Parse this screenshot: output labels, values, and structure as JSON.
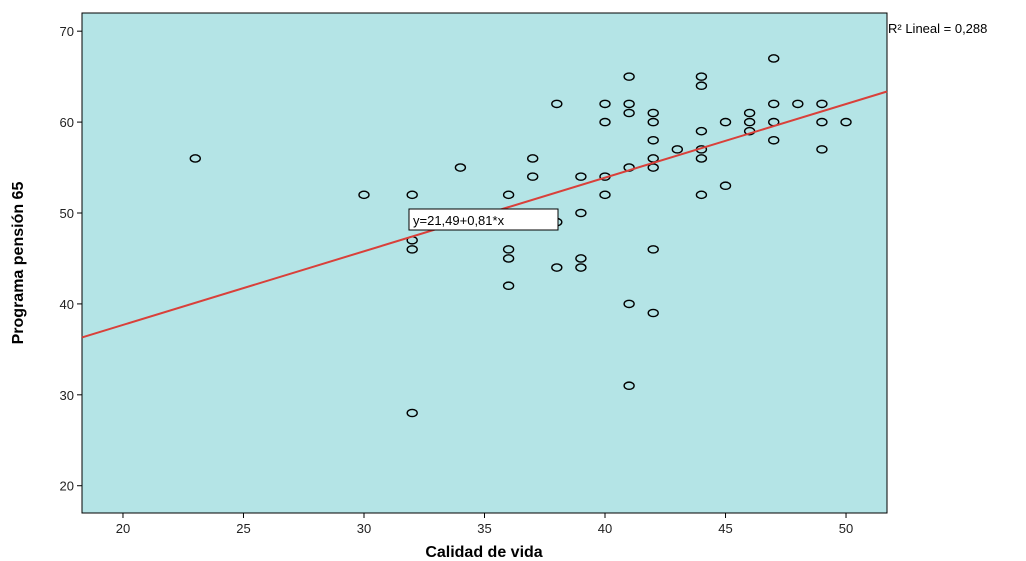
{
  "chart_data": {
    "type": "scatter",
    "title": "",
    "xlabel": "Calidad de vida",
    "ylabel": "Programa pensión 65",
    "xlim": [
      18.3,
      51.7
    ],
    "ylim": [
      17,
      72
    ],
    "xticks": [
      20,
      25,
      30,
      35,
      40,
      45,
      50
    ],
    "yticks": [
      20,
      30,
      40,
      50,
      60,
      70
    ],
    "grid": false,
    "background_color": "#b4e4e6",
    "point_color": "#000000",
    "fit_line_color": "#d9403a",
    "fit": {
      "intercept": 21.49,
      "slope": 0.81,
      "equation_label": "y=21,49+0,81*x",
      "r2_label": "R² Lineal = 0,288"
    },
    "points": [
      {
        "x": 23,
        "y": 56
      },
      {
        "x": 30,
        "y": 52
      },
      {
        "x": 32,
        "y": 52
      },
      {
        "x": 32,
        "y": 47
      },
      {
        "x": 32,
        "y": 46
      },
      {
        "x": 32,
        "y": 28
      },
      {
        "x": 34,
        "y": 55
      },
      {
        "x": 36,
        "y": 52
      },
      {
        "x": 36,
        "y": 46
      },
      {
        "x": 36,
        "y": 45
      },
      {
        "x": 36,
        "y": 42
      },
      {
        "x": 37,
        "y": 56
      },
      {
        "x": 37,
        "y": 54
      },
      {
        "x": 38,
        "y": 62
      },
      {
        "x": 38,
        "y": 49
      },
      {
        "x": 38,
        "y": 44
      },
      {
        "x": 39,
        "y": 54
      },
      {
        "x": 39,
        "y": 50
      },
      {
        "x": 39,
        "y": 45
      },
      {
        "x": 39,
        "y": 44
      },
      {
        "x": 40,
        "y": 62
      },
      {
        "x": 40,
        "y": 60
      },
      {
        "x": 40,
        "y": 54
      },
      {
        "x": 40,
        "y": 52
      },
      {
        "x": 41,
        "y": 65
      },
      {
        "x": 41,
        "y": 62
      },
      {
        "x": 41,
        "y": 61
      },
      {
        "x": 41,
        "y": 55
      },
      {
        "x": 41,
        "y": 40
      },
      {
        "x": 41,
        "y": 31
      },
      {
        "x": 42,
        "y": 61
      },
      {
        "x": 42,
        "y": 60
      },
      {
        "x": 42,
        "y": 58
      },
      {
        "x": 42,
        "y": 56
      },
      {
        "x": 42,
        "y": 55
      },
      {
        "x": 42,
        "y": 46
      },
      {
        "x": 42,
        "y": 39
      },
      {
        "x": 43,
        "y": 57
      },
      {
        "x": 44,
        "y": 65
      },
      {
        "x": 44,
        "y": 64
      },
      {
        "x": 44,
        "y": 59
      },
      {
        "x": 44,
        "y": 57
      },
      {
        "x": 44,
        "y": 56
      },
      {
        "x": 44,
        "y": 52
      },
      {
        "x": 45,
        "y": 60
      },
      {
        "x": 45,
        "y": 53
      },
      {
        "x": 46,
        "y": 61
      },
      {
        "x": 46,
        "y": 60
      },
      {
        "x": 46,
        "y": 59
      },
      {
        "x": 47,
        "y": 67
      },
      {
        "x": 47,
        "y": 62
      },
      {
        "x": 47,
        "y": 60
      },
      {
        "x": 47,
        "y": 58
      },
      {
        "x": 48,
        "y": 62
      },
      {
        "x": 49,
        "y": 62
      },
      {
        "x": 49,
        "y": 60
      },
      {
        "x": 49,
        "y": 57
      },
      {
        "x": 50,
        "y": 60
      }
    ]
  }
}
